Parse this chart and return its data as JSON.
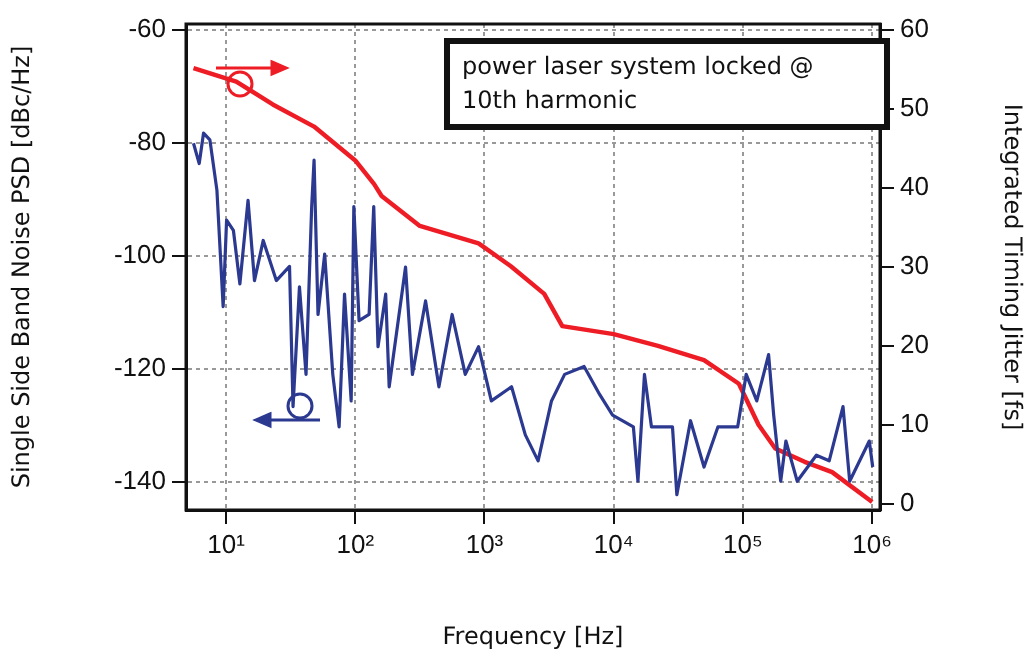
{
  "chart_data": {
    "type": "line",
    "xlabel": "Frequency [Hz]",
    "ylabel": "Single Side Band Noise PSD [dBc/Hz]",
    "y2label": "Integrated Timing Jitter [fs]",
    "annotations": [
      "power laser system locked @ 10th harmonic"
    ],
    "log": "x",
    "grid": true,
    "legend": false,
    "marker": "none",
    "line_style": "solid",
    "xlim": [
      4.9,
      1150000
    ],
    "xticks": [
      {
        "value": 10,
        "label": "10¹"
      },
      {
        "value": 100,
        "label": "10²"
      },
      {
        "value": 1000,
        "label": "10³"
      },
      {
        "value": 10000,
        "label": "10⁴"
      },
      {
        "value": 100000,
        "label": "10⁵"
      },
      {
        "value": 1000000,
        "label": "10⁶"
      }
    ],
    "ylim": [
      -145,
      -59
    ],
    "yticks": [
      -140,
      -120,
      -100,
      -80,
      -60
    ],
    "y2lim": [
      -0.8,
      60.8
    ],
    "y2ticks": [
      0,
      10,
      20,
      30,
      40,
      50,
      60
    ],
    "series": [
      {
        "color": "#2b3990",
        "axis": "y",
        "x": [
          5.6,
          6.2,
          6.7,
          7.5,
          8.5,
          9.5,
          10.1,
          11.4,
          12.8,
          14.8,
          16.6,
          19.4,
          24.5,
          31,
          33,
          37,
          41.6,
          46,
          48,
          51.5,
          58,
          67,
          75,
          82.6,
          93,
          97.5,
          107,
          128,
          139,
          150,
          172,
          183,
          245,
          277,
          350,
          444,
          562,
          710,
          900,
          1130,
          1620,
          2070,
          2600,
          3300,
          4170,
          5900,
          7800,
          9800,
          14200,
          15400,
          17300,
          19600,
          28500,
          30800,
          39300,
          50000,
          64000,
          91000,
          106000,
          128000,
          158000,
          173000,
          196000,
          215000,
          263000,
          370000,
          465000,
          595000,
          670000,
          950000,
          1010000
        ],
        "values": [
          -80.1,
          -83.7,
          -78.3,
          -79.5,
          -88.4,
          -109,
          -93.7,
          -95.5,
          -105,
          -90.2,
          -104.4,
          -97.3,
          -104.4,
          -101.9,
          -126.7,
          -105.5,
          -121,
          -91.3,
          -83.1,
          -110.4,
          -99.7,
          -121,
          -130.3,
          -106.8,
          -125.7,
          -91.3,
          -111.5,
          -110.4,
          -91.3,
          -116.1,
          -106.8,
          -123.2,
          -102,
          -121,
          -108,
          -123.2,
          -110.4,
          -121,
          -116.1,
          -125.7,
          -123.2,
          -131.7,
          -136.3,
          -125.7,
          -121,
          -119.6,
          -124.6,
          -128.2,
          -130.3,
          -139.9,
          -121,
          -130.3,
          -130.3,
          -142.3,
          -129.2,
          -137.4,
          -130.3,
          -130.3,
          -121,
          -125.7,
          -117.5,
          -128.2,
          -139.9,
          -132.8,
          -139.9,
          -135.3,
          -136.3,
          -126.7,
          -139.9,
          -132.8,
          -137.4
        ]
      },
      {
        "color": "#ee1c25",
        "axis": "y2",
        "x": [
          5.6,
          12,
          23,
          48,
          100,
          140,
          160,
          316,
          900,
          1600,
          2900,
          4000,
          10000,
          22000,
          50000,
          93000,
          132000,
          178000,
          300000,
          490000,
          1000000
        ],
        "values": [
          55.2,
          53.5,
          50.6,
          47.8,
          43.5,
          40.5,
          39,
          35.2,
          33,
          30.1,
          26.6,
          22.5,
          21.5,
          20,
          18.2,
          15.2,
          10,
          7,
          5.3,
          4,
          0.2
        ]
      }
    ]
  }
}
